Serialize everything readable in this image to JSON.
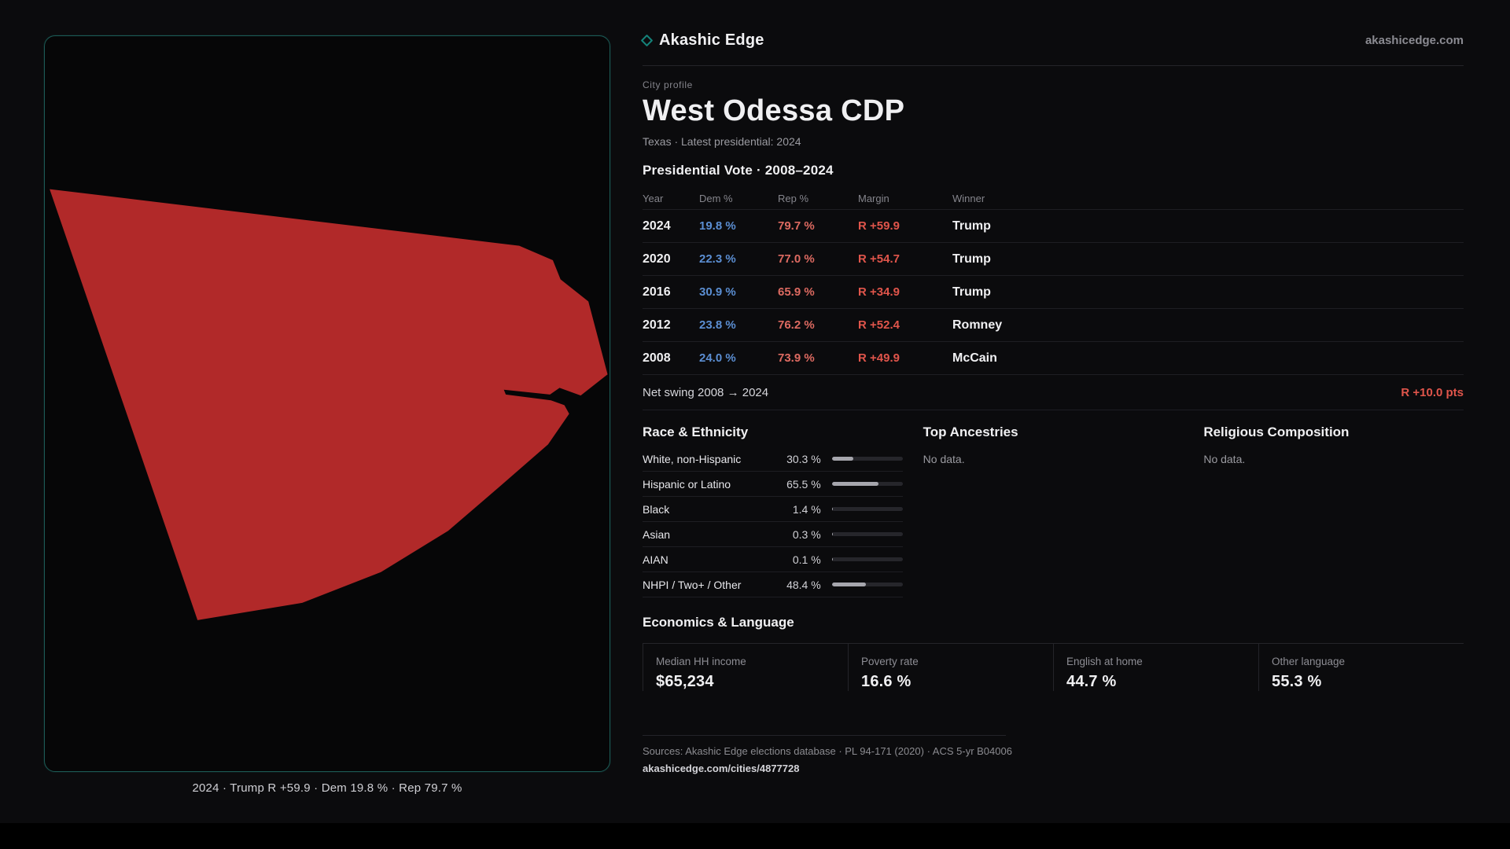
{
  "brand": {
    "name": "Akashic Edge",
    "domain": "akashicedge.com",
    "accent_teal": "#15837a"
  },
  "map": {
    "caption": "2024 · Trump R +59.9 · Dem 19.8 % · Rep 79.7 %",
    "shape_fill": "#b12929",
    "border_color": "#1c5a55"
  },
  "profile": {
    "eyebrow": "City profile",
    "title": "West Odessa CDP",
    "subtitle": "Texas · Latest presidential: 2024"
  },
  "vote": {
    "heading": "Presidential Vote · 2008–2024",
    "columns": {
      "year": "Year",
      "dem": "Dem %",
      "rep": "Rep %",
      "margin": "Margin",
      "winner": "Winner"
    },
    "rows": [
      {
        "year": "2024",
        "dem": "19.8 %",
        "rep": "79.7 %",
        "margin": "R +59.9",
        "winner": "Trump"
      },
      {
        "year": "2020",
        "dem": "22.3 %",
        "rep": "77.0 %",
        "margin": "R +54.7",
        "winner": "Trump"
      },
      {
        "year": "2016",
        "dem": "30.9 %",
        "rep": "65.9 %",
        "margin": "R +34.9",
        "winner": "Trump"
      },
      {
        "year": "2012",
        "dem": "23.8 %",
        "rep": "76.2 %",
        "margin": "R +52.4",
        "winner": "Romney"
      },
      {
        "year": "2008",
        "dem": "24.0 %",
        "rep": "73.9 %",
        "margin": "R +49.9",
        "winner": "McCain"
      }
    ],
    "net_swing_label": "Net swing 2008 → 2024",
    "net_swing_value": "R +10.0 pts",
    "dem_color": "#5b8ed2",
    "rep_color": "#dd6a61",
    "margin_color": "#e0554b"
  },
  "race": {
    "heading": "Race & Ethnicity",
    "rows": [
      {
        "label": "White, non-Hispanic",
        "value": "30.3 %",
        "pct": 30.3
      },
      {
        "label": "Hispanic or Latino",
        "value": "65.5 %",
        "pct": 65.5
      },
      {
        "label": "Black",
        "value": "1.4 %",
        "pct": 1.4
      },
      {
        "label": "Asian",
        "value": "0.3 %",
        "pct": 0.3
      },
      {
        "label": "AIAN",
        "value": "0.1 %",
        "pct": 0.1
      },
      {
        "label": "NHPI / Two+ / Other",
        "value": "48.4 %",
        "pct": 48.4
      }
    ]
  },
  "ancestries": {
    "heading": "Top Ancestries",
    "empty": "No data."
  },
  "religion": {
    "heading": "Religious Composition",
    "empty": "No data."
  },
  "economics": {
    "heading": "Economics & Language",
    "stats": [
      {
        "label": "Median HH income",
        "value": "$65,234"
      },
      {
        "label": "Poverty rate",
        "value": "16.6 %"
      },
      {
        "label": "English at home",
        "value": "44.7 %"
      },
      {
        "label": "Other language",
        "value": "55.3 %"
      }
    ]
  },
  "footer": {
    "sources": "Sources: Akashic Edge elections database · PL 94-171 (2020) · ACS 5-yr B04006",
    "link": "akashicedge.com/cities/4877728"
  }
}
